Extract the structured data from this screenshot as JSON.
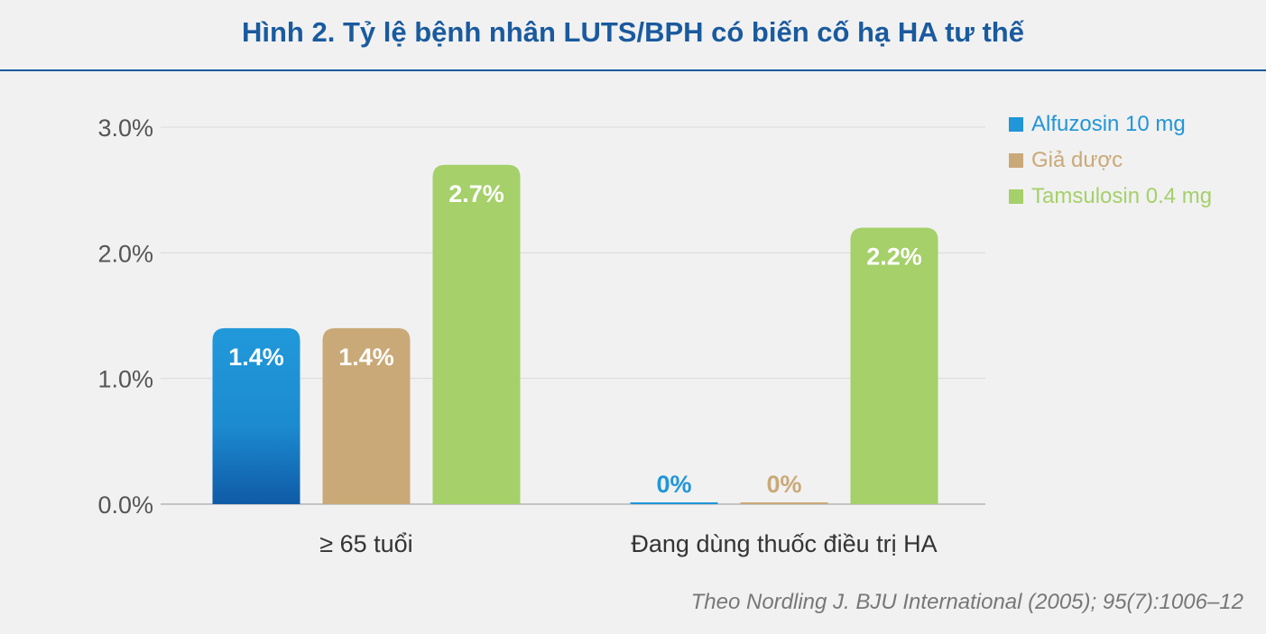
{
  "title": "Hình 2. Tỷ lệ bệnh nhân LUTS/BPH có biến cố hạ HA tư thế",
  "source": "Theo Nordling J. BJU International (2005); 95(7):1006–12",
  "chart_data": {
    "type": "bar",
    "title": "Hình 2. Tỷ lệ bệnh nhân LUTS/BPH có biến cố hạ HA tư thế",
    "categories": [
      "≥ 65 tuổi",
      "Đang dùng thuốc điều trị HA"
    ],
    "series": [
      {
        "name": "Alfuzosin 10 mg",
        "values": [
          1.4,
          0
        ],
        "labels": [
          "1.4%",
          "0%"
        ],
        "color": "#2196d8"
      },
      {
        "name": "Giả dược",
        "values": [
          1.4,
          0
        ],
        "labels": [
          "1.4%",
          "0%"
        ],
        "color": "#caa978"
      },
      {
        "name": "Tamsulosin 0.4 mg",
        "values": [
          2.7,
          2.2
        ],
        "labels": [
          "2.7%",
          "2.2%"
        ],
        "color": "#a5d06a"
      }
    ],
    "ylim": [
      0,
      3.0
    ],
    "yticks": [
      "0.0%",
      "1.0%",
      "2.0%",
      "3.0%"
    ],
    "ytick_values": [
      0,
      1,
      2,
      3
    ],
    "grid": true,
    "legend": "top-right"
  }
}
